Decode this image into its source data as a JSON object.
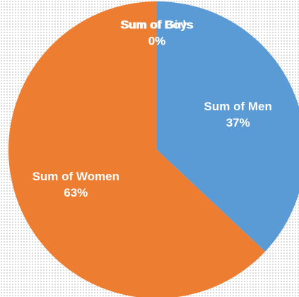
{
  "chart_data": {
    "type": "pie",
    "categories": [
      "Sum of Men",
      "Sum of Women",
      "Sum of Boys",
      "Sum of Girls"
    ],
    "values": [
      37,
      63,
      0,
      0
    ],
    "value_labels": [
      "37%",
      "63%",
      "0%",
      "0%"
    ],
    "colors": [
      "#5b9bd5",
      "#ed7d31",
      "#a5a5a5",
      "#ffc000"
    ]
  }
}
